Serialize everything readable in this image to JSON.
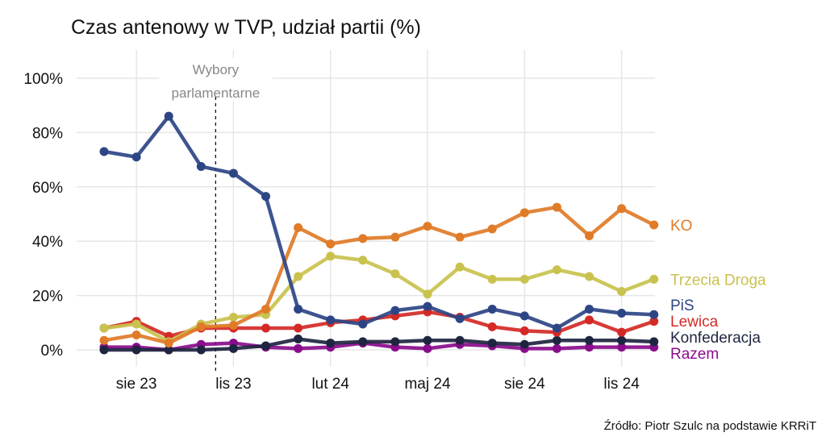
{
  "chart_data": {
    "type": "line",
    "title": "Czas antenowy w TVP, udział partii (%)",
    "source": "Źródło: Piotr Szulc na podstawie KRRiT",
    "x": [
      "2023-07",
      "2023-08",
      "2023-09",
      "2023-10",
      "2023-11",
      "2023-12",
      "2024-01",
      "2024-02",
      "2024-03",
      "2024-04",
      "2024-05",
      "2024-06",
      "2024-07",
      "2024-08",
      "2024-09",
      "2024-10",
      "2024-11",
      "2024-12"
    ],
    "x_ticks": [
      {
        "month": 1,
        "label": "sie 23"
      },
      {
        "month": 4,
        "label": "lis 23"
      },
      {
        "month": 7,
        "label": "lut 24"
      },
      {
        "month": 10,
        "label": "maj 24"
      },
      {
        "month": 13,
        "label": "sie 24"
      },
      {
        "month": 16,
        "label": "lis 24"
      }
    ],
    "y_ticks": [
      {
        "v": 0,
        "label": "0%"
      },
      {
        "v": 20,
        "label": "20%"
      },
      {
        "v": 40,
        "label": "40%"
      },
      {
        "v": 60,
        "label": "60%"
      },
      {
        "v": 80,
        "label": "80%"
      },
      {
        "v": 100,
        "label": "100%"
      }
    ],
    "ylim": [
      -3,
      108
    ],
    "grid": true,
    "annotation": {
      "date": "2023-10-15",
      "line1": "Wybory",
      "line2": "parlamentarne"
    },
    "series": [
      {
        "name": "KO",
        "color": "#E07B28",
        "values": [
          3.5,
          5.5,
          2.5,
          8.5,
          9,
          15,
          45,
          39,
          41,
          41.5,
          45.5,
          41.5,
          44.5,
          50.5,
          52.5,
          42,
          52,
          46
        ]
      },
      {
        "name": "Trzecia Droga",
        "color": "#C9C24E",
        "values": [
          8,
          9.5,
          3,
          9.5,
          12,
          13,
          27,
          34.5,
          33,
          28,
          20.5,
          30.5,
          26,
          26,
          29.5,
          27,
          21.5,
          26
        ]
      },
      {
        "name": "PiS",
        "color": "#2E4585",
        "values": [
          73,
          71,
          86,
          67.5,
          65,
          56.5,
          15,
          11,
          9.5,
          14.5,
          16,
          11.5,
          15,
          12.5,
          8,
          15,
          13.5,
          13
        ]
      },
      {
        "name": "Lewica",
        "color": "#D42A26",
        "values": [
          8,
          10.5,
          5,
          8,
          8,
          8,
          8,
          10,
          11,
          12.5,
          14,
          12,
          8.5,
          7,
          6.5,
          11,
          6.5,
          10.5
        ]
      },
      {
        "name": "Konfederacja",
        "color": "#1E2540",
        "values": [
          0,
          0,
          0,
          0,
          0.5,
          1.5,
          4,
          2.5,
          3,
          3,
          3.5,
          3.5,
          2.5,
          2,
          3.5,
          3.5,
          3.5,
          3
        ]
      },
      {
        "name": "Razem",
        "color": "#8A0C8C",
        "values": [
          1,
          1,
          0,
          2,
          2.5,
          1,
          0.5,
          1,
          2.5,
          1,
          0.5,
          2,
          1.5,
          0.5,
          0.5,
          1,
          1,
          1
        ]
      }
    ]
  }
}
